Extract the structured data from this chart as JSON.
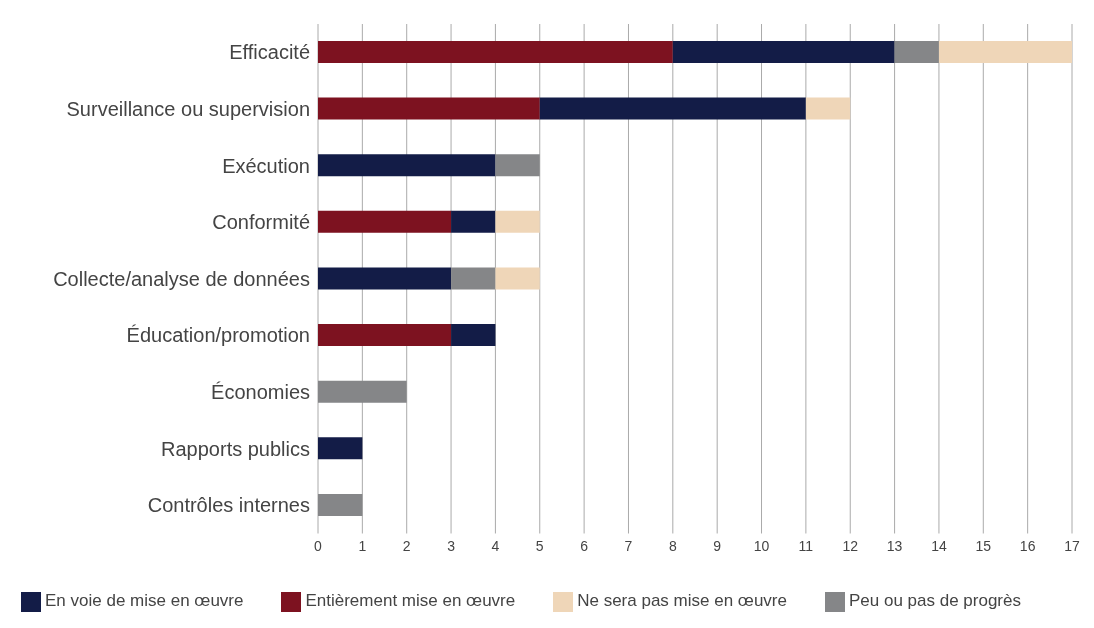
{
  "chart_data": {
    "type": "bar",
    "orientation": "horizontal",
    "stacked": true,
    "categories": [
      "Efficacité",
      "Surveillance ou supervision",
      "Exécution",
      "Conformité",
      "Collecte/analyse de données",
      "Éducation/promotion",
      "Économies",
      "Rapports publics",
      "Contrôles internes"
    ],
    "series": [
      {
        "name": "Entièrement mise en œuvre",
        "color": "#7d1220",
        "values": [
          8,
          5,
          null,
          3,
          null,
          3,
          null,
          null,
          null
        ]
      },
      {
        "name": "En voie de mise en œuvre",
        "color": "#131c47",
        "values": [
          5,
          6,
          4,
          1,
          3,
          1,
          null,
          1,
          null
        ]
      },
      {
        "name": "Peu ou pas de progrès",
        "color": "#858688",
        "values": [
          1,
          null,
          1,
          null,
          1,
          null,
          2,
          null,
          1
        ]
      },
      {
        "name": "Ne sera pas mise en œuvre",
        "color": "#efd6b8",
        "values": [
          3,
          1,
          null,
          1,
          1,
          null,
          null,
          null,
          null
        ]
      }
    ],
    "xlim": [
      0,
      17
    ],
    "xticks": [
      0,
      1,
      2,
      3,
      4,
      5,
      6,
      7,
      8,
      9,
      10,
      11,
      12,
      13,
      14,
      15,
      16,
      17
    ],
    "grid": "x",
    "legend": "bottom"
  }
}
